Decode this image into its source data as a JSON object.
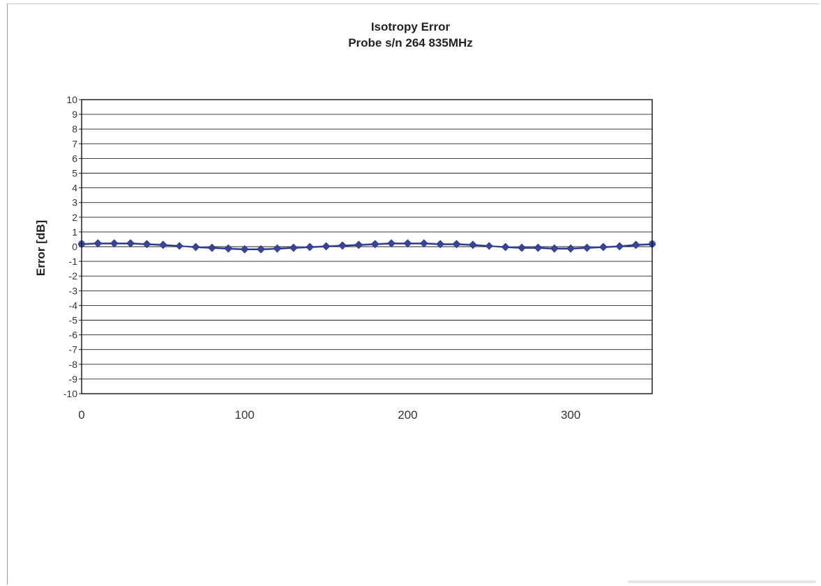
{
  "chart_data": {
    "type": "line",
    "title": "Isotropy Error",
    "subtitle": "Probe s/n 264 835MHz",
    "xlabel": "",
    "ylabel": "Error [dB]",
    "xlim": [
      0,
      350
    ],
    "ylim": [
      -10,
      10
    ],
    "x_ticks": [
      0,
      100,
      200,
      300
    ],
    "y_ticks": [
      10,
      9,
      8,
      7,
      6,
      5,
      4,
      3,
      2,
      1,
      0,
      -1,
      -2,
      -3,
      -4,
      -5,
      -6,
      -7,
      -8,
      -9,
      -10
    ],
    "grid": true,
    "legend": "none",
    "series": [
      {
        "color": "#6a6fd0",
        "marker": "diamond",
        "x": [
          0,
          10,
          20,
          30,
          40,
          50,
          60,
          70,
          80,
          90,
          100,
          110,
          120,
          130,
          140,
          150,
          160,
          170,
          180,
          190,
          200,
          210,
          220,
          230,
          240,
          250,
          260,
          270,
          280,
          290,
          300,
          310,
          320,
          330,
          340,
          350
        ],
        "y": [
          0.2,
          0.25,
          0.25,
          0.25,
          0.2,
          0.15,
          0.05,
          0.0,
          -0.05,
          -0.1,
          -0.15,
          -0.15,
          -0.1,
          -0.05,
          0.0,
          0.05,
          0.1,
          0.15,
          0.2,
          0.25,
          0.25,
          0.25,
          0.2,
          0.2,
          0.15,
          0.05,
          0.0,
          -0.05,
          -0.05,
          -0.1,
          -0.1,
          -0.05,
          0.0,
          0.05,
          0.15,
          0.2
        ]
      },
      {
        "color": "#1a2a6a",
        "marker": "diamond",
        "x": [
          0,
          10,
          20,
          30,
          40,
          50,
          60,
          70,
          80,
          90,
          100,
          110,
          120,
          130,
          140,
          150,
          160,
          170,
          180,
          190,
          200,
          210,
          220,
          230,
          240,
          250,
          260,
          270,
          280,
          290,
          300,
          310,
          320,
          330,
          340,
          350
        ],
        "y": [
          0.15,
          0.2,
          0.2,
          0.2,
          0.15,
          0.1,
          0.05,
          -0.05,
          -0.1,
          -0.15,
          -0.2,
          -0.2,
          -0.15,
          -0.1,
          -0.05,
          0.0,
          0.05,
          0.1,
          0.15,
          0.2,
          0.2,
          0.2,
          0.15,
          0.15,
          0.1,
          0.05,
          -0.05,
          -0.1,
          -0.1,
          -0.15,
          -0.15,
          -0.1,
          -0.05,
          0.0,
          0.1,
          0.15
        ]
      }
    ]
  }
}
